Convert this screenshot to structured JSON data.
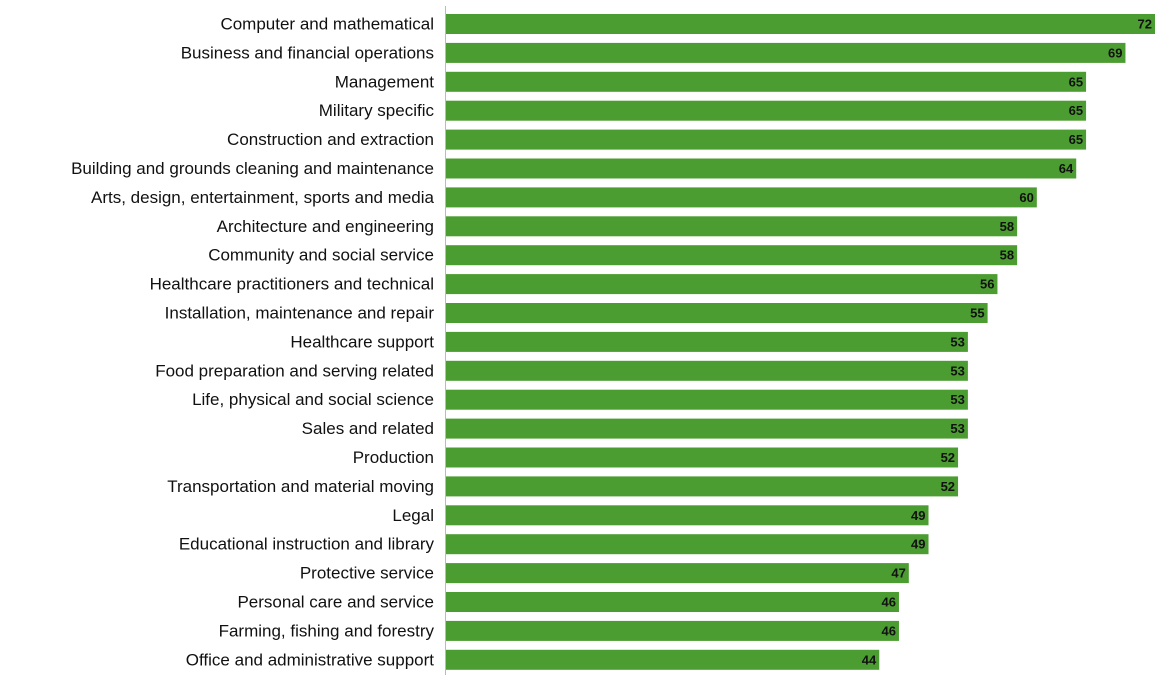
{
  "chart_data": {
    "type": "bar",
    "orientation": "horizontal",
    "categories": [
      "Computer and mathematical",
      "Business and financial operations",
      "Management",
      "Military specific",
      "Construction and extraction",
      "Building and grounds cleaning and maintenance",
      "Arts, design, entertainment, sports and media",
      "Architecture and engineering",
      "Community and social service",
      "Healthcare practitioners and technical",
      "Installation, maintenance and repair",
      "Healthcare support",
      "Food preparation and serving related",
      "Life, physical and social science",
      "Sales and related",
      "Production",
      "Transportation and material moving",
      "Legal",
      "Educational instruction and library",
      "Protective service",
      "Personal care and service",
      "Farming, fishing and forestry",
      "Office and administrative support"
    ],
    "values": [
      72,
      69,
      65,
      65,
      65,
      64,
      60,
      58,
      58,
      56,
      55,
      53,
      53,
      53,
      53,
      52,
      52,
      49,
      49,
      47,
      46,
      46,
      44
    ],
    "title": "",
    "xlabel": "",
    "ylabel": "",
    "xlim": [
      0,
      72
    ],
    "grid": false,
    "legend": "none",
    "data_labels": true,
    "colors": {
      "bar": "#4c9d31",
      "axis": "#bbbbbb",
      "text": "#111111"
    }
  }
}
